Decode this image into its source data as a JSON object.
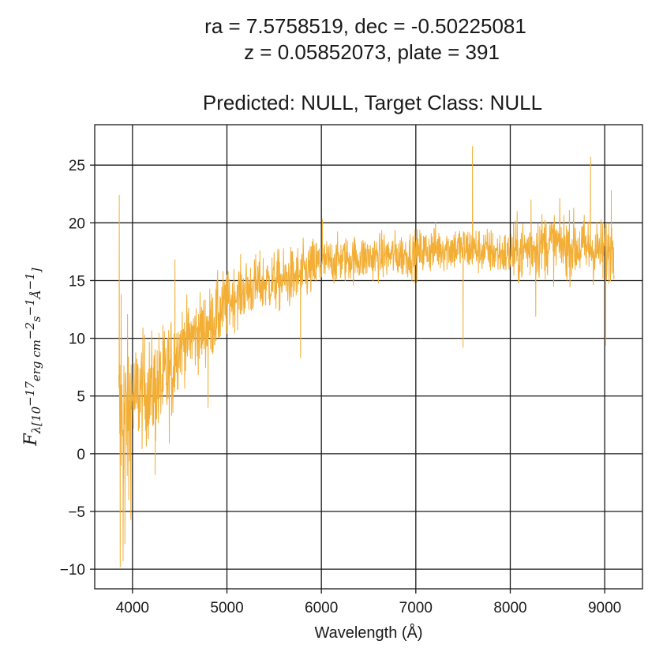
{
  "header": {
    "line1": "ra = 7.5758519, dec = -0.50225081",
    "line2": "z = 0.05852073, plate = 391",
    "line3": "Predicted: NULL, Target Class: NULL"
  },
  "chart_data": {
    "type": "line",
    "title": "Predicted: NULL, Target Class: NULL",
    "xlabel": "Wavelength (Å)",
    "ylabel": {
      "main": "F",
      "sub": "λ[10",
      "sup1": "−17",
      "mid": "erg cm",
      "sup2": "−2",
      "s": "s",
      "sup3": "−1",
      "ang": "Å",
      "sup4": "−1",
      "close": "]"
    },
    "xlim": [
      3600,
      9400
    ],
    "ylim": [
      -11.7,
      28.5
    ],
    "xticks": [
      4000,
      5000,
      6000,
      7000,
      8000,
      9000
    ],
    "xtick_labels": [
      "4000",
      "5000",
      "6000",
      "7000",
      "8000",
      "9000"
    ],
    "yticks": [
      -10,
      -5,
      0,
      5,
      10,
      15,
      20,
      25
    ],
    "ytick_labels": [
      "−10",
      "−5",
      "0",
      "5",
      "10",
      "15",
      "20",
      "25"
    ],
    "grid": true,
    "line_color": "#f2ae35",
    "series": [
      {
        "x_start": 3855,
        "x_end": 9100,
        "continuum": [
          [
            3855,
            3.0
          ],
          [
            3950,
            3.5
          ],
          [
            4000,
            4.5
          ],
          [
            4100,
            5.5
          ],
          [
            4200,
            5.5
          ],
          [
            4300,
            6.0
          ],
          [
            4400,
            7.0
          ],
          [
            4500,
            9.5
          ],
          [
            4600,
            10.0
          ],
          [
            4700,
            10.5
          ],
          [
            4800,
            11.0
          ],
          [
            4900,
            12.0
          ],
          [
            5000,
            13.0
          ],
          [
            5100,
            13.8
          ],
          [
            5200,
            14.2
          ],
          [
            5400,
            14.8
          ],
          [
            5600,
            15.0
          ],
          [
            5800,
            15.5
          ],
          [
            6000,
            16.5
          ],
          [
            6200,
            16.8
          ],
          [
            6500,
            17.0
          ],
          [
            6800,
            17.2
          ],
          [
            7000,
            17.3
          ],
          [
            7200,
            17.8
          ],
          [
            7500,
            17.8
          ],
          [
            7800,
            17.5
          ],
          [
            8000,
            17.2
          ],
          [
            8200,
            17.8
          ],
          [
            8400,
            18.2
          ],
          [
            8600,
            18.0
          ],
          [
            8800,
            17.8
          ],
          [
            9000,
            17.5
          ],
          [
            9100,
            18.0
          ]
        ],
        "spikes": [
          [
            3860,
            22.4
          ],
          [
            3870,
            -9.8
          ],
          [
            3880,
            13.8
          ],
          [
            3900,
            -9.3
          ],
          [
            3920,
            -7.8
          ],
          [
            3960,
            -4.0
          ],
          [
            4240,
            -1.8
          ],
          [
            4450,
            16.8
          ],
          [
            4800,
            4.0
          ],
          [
            5780,
            8.3
          ],
          [
            6010,
            20.3
          ],
          [
            7500,
            9.2
          ],
          [
            7600,
            26.6
          ],
          [
            8220,
            22.0
          ],
          [
            8270,
            11.9
          ],
          [
            8850,
            25.7
          ],
          [
            9010,
            9.4
          ],
          [
            9070,
            22.8
          ]
        ]
      }
    ]
  }
}
